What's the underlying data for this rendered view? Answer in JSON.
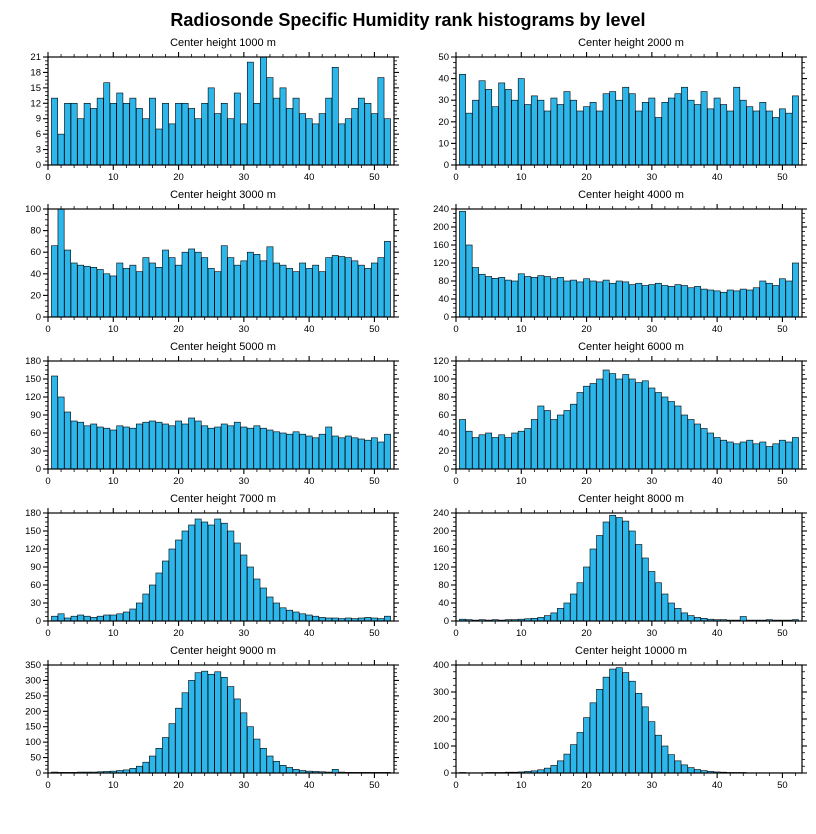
{
  "title": "Radiosonde Specific Humidity rank histograms by level",
  "colors": {
    "bar_fill": "#2db6ea",
    "bar_edge": "#000000",
    "axis": "#000000",
    "background": "#ffffff"
  },
  "x_axis": {
    "lim": [
      0,
      53
    ],
    "ticks": [
      0,
      10,
      20,
      30,
      40,
      50
    ],
    "minor_step": 2
  },
  "chart_data": [
    {
      "type": "bar",
      "title": "Center height 1000 m",
      "xlabel": "",
      "ylabel": "",
      "grid": false,
      "legend": false,
      "ylim": [
        0,
        21
      ],
      "yticks": [
        0,
        3,
        6,
        9,
        12,
        15,
        18,
        21
      ],
      "values": [
        13,
        6,
        12,
        12,
        9,
        12,
        11,
        13,
        16,
        12,
        14,
        12,
        13,
        11,
        9,
        13,
        7,
        12,
        8,
        12,
        12,
        11,
        9,
        12,
        15,
        10,
        12,
        9,
        14,
        8,
        20,
        12,
        21,
        17,
        13,
        15,
        11,
        13,
        10,
        9,
        8,
        10,
        13,
        19,
        8,
        9,
        11,
        13,
        12,
        10,
        17,
        9
      ]
    },
    {
      "type": "bar",
      "title": "Center height 2000 m",
      "xlabel": "",
      "ylabel": "",
      "grid": false,
      "legend": false,
      "ylim": [
        0,
        50
      ],
      "yticks": [
        0,
        10,
        20,
        30,
        40,
        50
      ],
      "values": [
        42,
        24,
        30,
        39,
        35,
        27,
        38,
        35,
        30,
        40,
        28,
        32,
        30,
        25,
        31,
        28,
        34,
        30,
        25,
        27,
        29,
        25,
        33,
        34,
        30,
        36,
        33,
        25,
        29,
        31,
        22,
        29,
        31,
        33,
        36,
        30,
        28,
        34,
        26,
        31,
        28,
        25,
        36,
        30,
        27,
        25,
        29,
        25,
        22,
        26,
        24,
        32
      ]
    },
    {
      "type": "bar",
      "title": "Center height 3000 m",
      "xlabel": "",
      "ylabel": "",
      "grid": false,
      "legend": false,
      "ylim": [
        0,
        100
      ],
      "yticks": [
        0,
        20,
        40,
        60,
        80,
        100
      ],
      "values": [
        66,
        100,
        62,
        50,
        48,
        47,
        46,
        44,
        40,
        38,
        50,
        45,
        48,
        42,
        55,
        50,
        46,
        62,
        55,
        48,
        60,
        63,
        60,
        55,
        45,
        42,
        66,
        55,
        48,
        52,
        60,
        58,
        52,
        65,
        50,
        48,
        45,
        42,
        50,
        45,
        48,
        42,
        55,
        57,
        56,
        55,
        52,
        48,
        45,
        50,
        55,
        70
      ]
    },
    {
      "type": "bar",
      "title": "Center height 4000 m",
      "xlabel": "",
      "ylabel": "",
      "grid": false,
      "legend": false,
      "ylim": [
        0,
        240
      ],
      "yticks": [
        0,
        40,
        80,
        120,
        160,
        200,
        240
      ],
      "values": [
        235,
        160,
        110,
        95,
        90,
        86,
        88,
        82,
        80,
        96,
        90,
        88,
        92,
        90,
        85,
        88,
        80,
        82,
        78,
        85,
        80,
        78,
        82,
        75,
        80,
        78,
        72,
        75,
        70,
        72,
        75,
        70,
        68,
        72,
        70,
        65,
        68,
        62,
        60,
        58,
        55,
        60,
        58,
        62,
        60,
        65,
        80,
        75,
        70,
        85,
        80,
        120
      ]
    },
    {
      "type": "bar",
      "title": "Center height 5000 m",
      "xlabel": "",
      "ylabel": "",
      "grid": false,
      "legend": false,
      "ylim": [
        0,
        180
      ],
      "yticks": [
        0,
        30,
        60,
        90,
        120,
        150,
        180
      ],
      "values": [
        155,
        120,
        95,
        80,
        78,
        72,
        75,
        70,
        68,
        65,
        72,
        70,
        68,
        75,
        78,
        80,
        78,
        75,
        72,
        80,
        75,
        85,
        80,
        72,
        68,
        70,
        75,
        72,
        78,
        70,
        68,
        72,
        68,
        65,
        62,
        60,
        58,
        62,
        58,
        55,
        52,
        58,
        70,
        55,
        52,
        55,
        52,
        50,
        48,
        52,
        45,
        58
      ]
    },
    {
      "type": "bar",
      "title": "Center height 6000 m",
      "xlabel": "",
      "ylabel": "",
      "grid": false,
      "legend": false,
      "ylim": [
        0,
        120
      ],
      "yticks": [
        0,
        20,
        40,
        60,
        80,
        100,
        120
      ],
      "values": [
        55,
        42,
        35,
        38,
        40,
        35,
        38,
        35,
        40,
        42,
        45,
        55,
        70,
        65,
        55,
        60,
        65,
        72,
        85,
        92,
        95,
        100,
        110,
        106,
        100,
        105,
        100,
        96,
        98,
        90,
        85,
        80,
        75,
        70,
        60,
        55,
        50,
        45,
        40,
        35,
        32,
        30,
        28,
        30,
        32,
        28,
        30,
        25,
        28,
        32,
        30,
        35
      ]
    },
    {
      "type": "bar",
      "title": "Center height 7000 m",
      "xlabel": "",
      "ylabel": "",
      "grid": false,
      "legend": false,
      "ylim": [
        0,
        180
      ],
      "yticks": [
        0,
        30,
        60,
        90,
        120,
        150,
        180
      ],
      "values": [
        8,
        12,
        5,
        8,
        10,
        8,
        6,
        8,
        10,
        10,
        12,
        15,
        20,
        30,
        45,
        60,
        80,
        100,
        120,
        135,
        150,
        160,
        170,
        165,
        160,
        170,
        163,
        150,
        130,
        110,
        90,
        70,
        55,
        40,
        30,
        22,
        18,
        15,
        12,
        10,
        8,
        6,
        5,
        5,
        4,
        5,
        4,
        5,
        6,
        5,
        4,
        8
      ]
    },
    {
      "type": "bar",
      "title": "Center height 8000 m",
      "xlabel": "",
      "ylabel": "",
      "grid": false,
      "legend": false,
      "ylim": [
        0,
        240
      ],
      "yticks": [
        0,
        40,
        80,
        120,
        160,
        200,
        240
      ],
      "values": [
        4,
        3,
        2,
        3,
        2,
        3,
        2,
        3,
        3,
        4,
        5,
        6,
        8,
        12,
        18,
        28,
        40,
        60,
        85,
        120,
        160,
        190,
        220,
        235,
        230,
        222,
        200,
        170,
        140,
        110,
        85,
        60,
        40,
        28,
        18,
        12,
        8,
        6,
        4,
        3,
        3,
        2,
        2,
        10,
        2,
        2,
        2,
        3,
        2,
        2,
        2,
        3
      ]
    },
    {
      "type": "bar",
      "title": "Center height 9000 m",
      "xlabel": "",
      "ylabel": "",
      "grid": false,
      "legend": false,
      "ylim": [
        0,
        350
      ],
      "yticks": [
        0,
        50,
        100,
        150,
        200,
        250,
        300,
        350
      ],
      "values": [
        3,
        2,
        2,
        2,
        3,
        3,
        3,
        4,
        5,
        6,
        8,
        10,
        15,
        22,
        35,
        55,
        80,
        115,
        160,
        210,
        260,
        300,
        325,
        330,
        320,
        328,
        310,
        280,
        240,
        195,
        150,
        110,
        80,
        55,
        38,
        25,
        18,
        12,
        8,
        6,
        5,
        4,
        3,
        12,
        3,
        2,
        2,
        2,
        2,
        2,
        2,
        2
      ]
    },
    {
      "type": "bar",
      "title": "Center height 10000 m",
      "xlabel": "",
      "ylabel": "",
      "grid": false,
      "legend": false,
      "ylim": [
        0,
        400
      ],
      "yticks": [
        0,
        100,
        200,
        300,
        400
      ],
      "values": [
        2,
        1,
        1,
        1,
        2,
        2,
        2,
        3,
        3,
        4,
        6,
        8,
        12,
        18,
        28,
        45,
        70,
        105,
        150,
        205,
        260,
        310,
        355,
        385,
        390,
        372,
        340,
        295,
        245,
        190,
        140,
        100,
        68,
        45,
        30,
        20,
        13,
        9,
        6,
        4,
        3,
        2,
        2,
        2,
        1,
        1,
        1,
        1,
        1,
        1,
        1,
        1
      ]
    }
  ]
}
